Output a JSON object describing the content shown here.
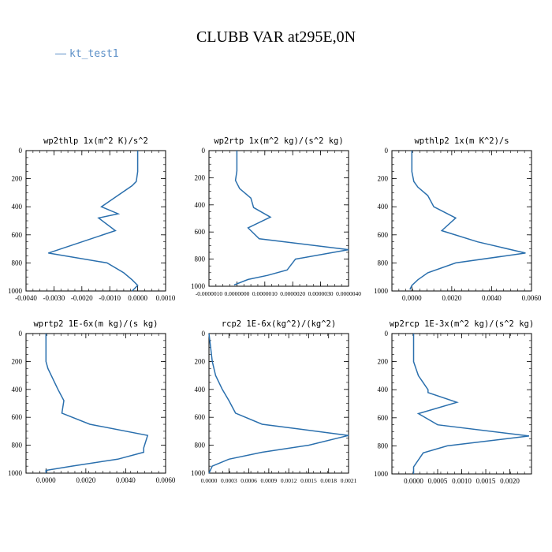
{
  "title": "CLUBB VAR at295E,0N",
  "legend": {
    "label": "kt_test1",
    "color": "#5b8fc7"
  },
  "line_color": "#2a6fad",
  "chart_data": [
    {
      "type": "line",
      "title": "wp2thlp  1x(m^2 K)/s^2",
      "xlim": [
        -0.004,
        0.001
      ],
      "ylim": [
        1000,
        0
      ],
      "xticks": [
        -0.004,
        -0.003,
        -0.002,
        -0.001,
        0.0,
        0.001
      ],
      "xticklabels": [
        "-0.0040",
        "-0.0030",
        "-0.0020",
        "-0.0010",
        "0.0000",
        "0.0010"
      ],
      "yticks": [
        0,
        200,
        400,
        600,
        800,
        1000
      ],
      "yticklabels": [
        "0",
        "200",
        "400",
        "600",
        "800",
        "1000"
      ],
      "x": [
        0.0,
        0.0,
        -5e-05,
        -0.0002,
        -0.0013,
        -0.0007,
        -0.0014,
        -0.0008,
        -0.0032,
        -0.0011,
        -0.0005,
        -0.0002,
        0.0,
        -0.0002
      ],
      "y": [
        0,
        150,
        220,
        250,
        400,
        450,
        480,
        570,
        730,
        800,
        870,
        920,
        960,
        1000
      ]
    },
    {
      "type": "line",
      "title": "wp2rtp  1x(m^2 kg)/(s^2 kg)",
      "xlim": [
        -1e-06,
        4e-06
      ],
      "ylim": [
        1000,
        0
      ],
      "xticks": [
        -1e-06,
        0.0,
        1e-06,
        2e-06,
        3e-06,
        4e-06
      ],
      "xticklabels": [
        "-0.0000010",
        "0.0000000",
        "0.0000010",
        "0.0000020",
        "0.0000030",
        "0.0000040"
      ],
      "yticks": [
        0,
        200,
        400,
        600,
        800,
        1000
      ],
      "yticklabels": [
        "0",
        "200",
        "400",
        "600",
        "800",
        "1000"
      ],
      "x": [
        0.0,
        0.0,
        -5e-08,
        1e-07,
        5e-07,
        6e-07,
        1.2e-06,
        4e-07,
        8e-07,
        4e-06,
        2.1e-06,
        1.8e-06,
        1.1e-06,
        4e-07,
        -1e-07
      ],
      "y": [
        0,
        150,
        220,
        280,
        350,
        420,
        490,
        570,
        650,
        730,
        800,
        880,
        920,
        950,
        990
      ]
    },
    {
      "type": "line",
      "title": "wpthlp2  1x(m K^2)/s",
      "xlim": [
        -0.001,
        0.006
      ],
      "ylim": [
        1000,
        0
      ],
      "xticks": [
        0.0,
        0.002,
        0.004,
        0.006
      ],
      "xticklabels": [
        "0.0000",
        "0.0020",
        "0.0040",
        "0.0060"
      ],
      "yticks": [
        0,
        200,
        400,
        600,
        800,
        1000
      ],
      "yticklabels": [
        "0",
        "200",
        "400",
        "600",
        "800",
        "1000"
      ],
      "x": [
        0.0,
        0.0,
        0.0001,
        0.0003,
        0.0008,
        0.0011,
        0.0022,
        0.0015,
        0.0033,
        0.0057,
        0.0022,
        0.0008,
        0.0003,
        0.0,
        -0.0001
      ],
      "y": [
        0,
        150,
        220,
        260,
        320,
        400,
        480,
        570,
        650,
        730,
        800,
        870,
        920,
        960,
        990
      ]
    },
    {
      "type": "line",
      "title": "wprtp2  1E-6x(m kg)/(s kg)",
      "xlim": [
        -0.001,
        0.006
      ],
      "ylim": [
        1000,
        0
      ],
      "xticks": [
        0.0,
        0.002,
        0.004,
        0.006
      ],
      "xticklabels": [
        "0.0000",
        "0.0020",
        "0.0040",
        "0.0060"
      ],
      "yticks": [
        0,
        200,
        400,
        600,
        800,
        1000
      ],
      "yticklabels": [
        "0",
        "200",
        "400",
        "600",
        "800",
        "1000"
      ],
      "x": [
        0.0,
        0.0,
        0.0001,
        0.0006,
        0.0009,
        0.0008,
        0.0022,
        0.0051,
        0.0049,
        0.0049,
        0.0036,
        0.0013,
        0.0,
        0.0
      ],
      "y": [
        0,
        200,
        250,
        400,
        480,
        570,
        650,
        730,
        820,
        850,
        900,
        950,
        980,
        1000
      ]
    },
    {
      "type": "line",
      "title": "rcp2  1E-6x(kg^2)/(kg^2)",
      "xlim": [
        0.0,
        0.0021
      ],
      "ylim": [
        1000,
        0
      ],
      "xticks": [
        0.0,
        0.0003,
        0.0006,
        0.0009,
        0.0012,
        0.0015,
        0.0018,
        0.0021
      ],
      "xticklabels": [
        "0.0000",
        "0.0003",
        "0.0006",
        "0.0009",
        "0.0012",
        "0.0015",
        "0.0018",
        "0.0021"
      ],
      "yticks": [
        0,
        200,
        400,
        600,
        800,
        1000
      ],
      "yticklabels": [
        "0",
        "200",
        "400",
        "600",
        "800",
        "1000"
      ],
      "x": [
        0.0,
        5e-05,
        0.0001,
        0.0002,
        0.0003,
        0.0004,
        0.0008,
        0.0021,
        0.0015,
        0.0008,
        0.0003,
        5e-05,
        0.0
      ],
      "y": [
        0,
        200,
        300,
        400,
        480,
        570,
        650,
        730,
        800,
        850,
        900,
        950,
        1000
      ]
    },
    {
      "type": "line",
      "title": "wp2rcp  1E-3x(m^2 kg)/(s^2 kg)",
      "xlim": [
        -0.00045,
        0.00245
      ],
      "ylim": [
        1000,
        0
      ],
      "xticks": [
        0.0,
        0.0005,
        0.001,
        0.0015,
        0.002
      ],
      "xticklabels": [
        "0.0000",
        "0.0005",
        "0.0010",
        "0.0015",
        "0.0020"
      ],
      "yticks": [
        0,
        200,
        400,
        600,
        800,
        1000
      ],
      "yticklabels": [
        "0",
        "200",
        "400",
        "600",
        "800",
        "1000"
      ],
      "x": [
        0.0,
        0.0,
        5e-05,
        0.0001,
        0.0002,
        0.0003,
        0.0003,
        0.0009,
        0.0001,
        0.0005,
        0.0024,
        0.0007,
        0.0002,
        0.0,
        0.0
      ],
      "y": [
        0,
        200,
        250,
        300,
        350,
        400,
        420,
        490,
        570,
        650,
        730,
        800,
        850,
        950,
        1000
      ]
    }
  ]
}
